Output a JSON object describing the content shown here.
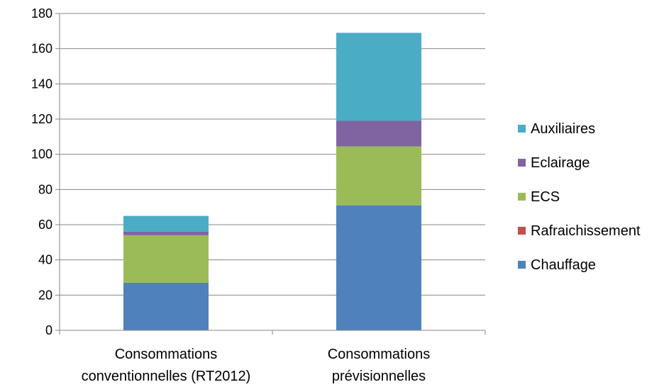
{
  "chart_data": {
    "type": "bar",
    "stacked": true,
    "title": "",
    "xlabel": "",
    "ylabel": "",
    "ylim": [
      0,
      180
    ],
    "yticks": [
      0,
      20,
      40,
      60,
      80,
      100,
      120,
      140,
      160,
      180
    ],
    "grid": true,
    "legend_position": "right",
    "categories": [
      [
        "Consommations",
        "conventionnelles (RT2012)"
      ],
      [
        "Consommations",
        "prévisionnelles"
      ]
    ],
    "series": [
      {
        "name": "Chauffage",
        "color": "#4F81BD",
        "values": [
          27,
          71
        ]
      },
      {
        "name": "Rafraichissement",
        "color": "#C0504D",
        "values": [
          0,
          0
        ]
      },
      {
        "name": "ECS",
        "color": "#9BBB59",
        "values": [
          27,
          33.5
        ]
      },
      {
        "name": "Eclairage",
        "color": "#8064A2",
        "values": [
          2,
          14.5
        ]
      },
      {
        "name": "Auxiliaires",
        "color": "#4BACC6",
        "values": [
          9,
          50
        ]
      }
    ]
  }
}
